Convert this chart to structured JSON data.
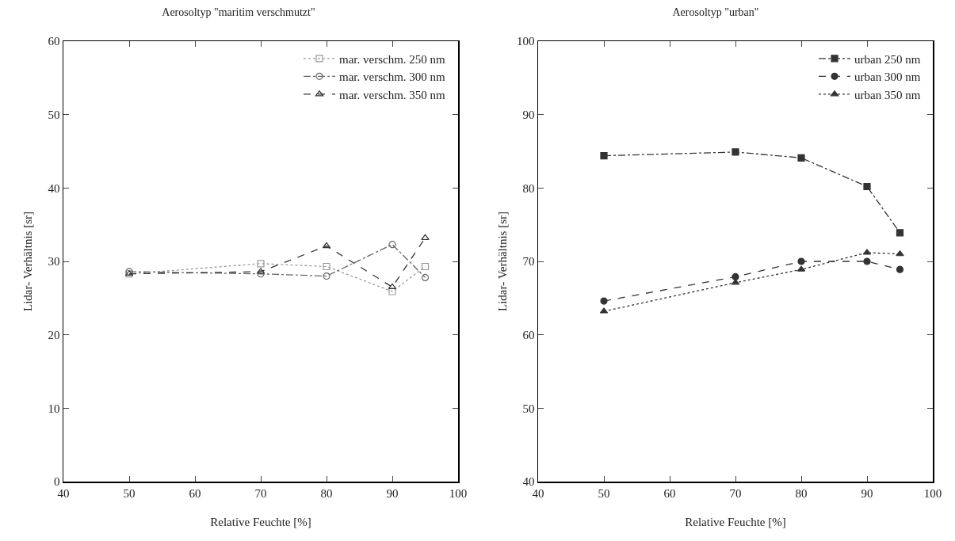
{
  "chart_data": [
    {
      "type": "line",
      "title": "Aerosoltyp \"maritim verschmutzt\"",
      "xlabel": "Relative Feuchte [%]",
      "ylabel": "Lidar- Verhältnis [sr]",
      "x": [
        50,
        70,
        80,
        90,
        95
      ],
      "xlim": [
        40,
        100
      ],
      "xticks": [
        40,
        50,
        60,
        70,
        80,
        90,
        100
      ],
      "ylim": [
        0,
        60
      ],
      "yticks": [
        0,
        10,
        20,
        30,
        40,
        50,
        60
      ],
      "grid": false,
      "legend": "top right",
      "series": [
        {
          "name": "mar. verschm. 250 nm",
          "color": "#999999",
          "line_style": "dotted",
          "marker": "square-open",
          "values": [
            28.3,
            29.7,
            29.3,
            25.9,
            29.3
          ]
        },
        {
          "name": "mar. verschm. 300 nm",
          "color": "#666666",
          "line_style": "dashdot",
          "marker": "circle-open",
          "values": [
            28.6,
            28.3,
            28.0,
            32.3,
            27.8
          ]
        },
        {
          "name": "mar. verschm. 350 nm",
          "color": "#333333",
          "line_style": "dashed",
          "marker": "triangle-up-open",
          "values": [
            28.3,
            28.6,
            32.1,
            26.5,
            33.2
          ]
        }
      ]
    },
    {
      "type": "line",
      "title": "Aerosoltyp \"urban\"",
      "xlabel": "Relative Feuchte [%]",
      "ylabel": "Lidar- Verhältnis [sr]",
      "x": [
        50,
        70,
        80,
        90,
        95
      ],
      "xlim": [
        40,
        100
      ],
      "xticks": [
        40,
        50,
        60,
        70,
        80,
        90,
        100
      ],
      "ylim": [
        40,
        100
      ],
      "yticks": [
        40,
        50,
        60,
        70,
        80,
        90,
        100
      ],
      "grid": false,
      "legend": "top right",
      "series": [
        {
          "name": "urban 250 nm",
          "color": "#333333",
          "line_style": "dashdot",
          "marker": "square",
          "values": [
            84.4,
            84.9,
            84.1,
            80.2,
            73.9
          ]
        },
        {
          "name": "urban 300 nm",
          "color": "#333333",
          "line_style": "dashed",
          "marker": "circle",
          "values": [
            64.6,
            67.9,
            70.0,
            70.0,
            68.9
          ]
        },
        {
          "name": "urban 350 nm",
          "color": "#333333",
          "line_style": "dotted",
          "marker": "triangle-up",
          "values": [
            63.2,
            67.1,
            68.9,
            71.2,
            71.0
          ]
        }
      ]
    }
  ]
}
